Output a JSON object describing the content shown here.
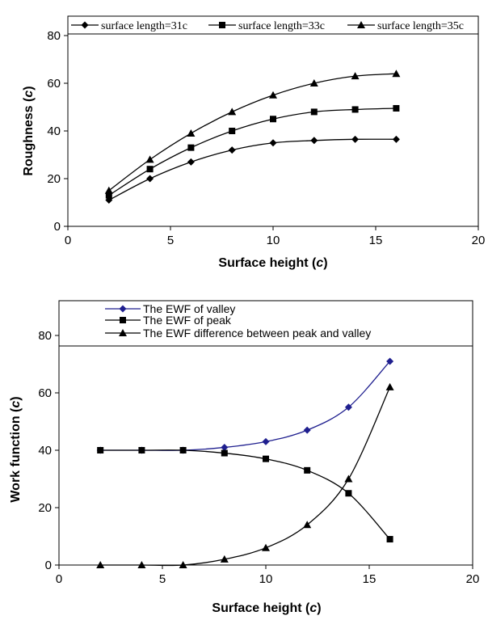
{
  "chart_data": [
    {
      "type": "line",
      "xlabel": "Surface height",
      "xlabel_unit": "c",
      "ylabel": "Roughness",
      "ylabel_unit": "c",
      "xlim": [
        0,
        20
      ],
      "ylim": [
        0,
        80
      ],
      "xticks": [
        "0",
        "5",
        "10",
        "15",
        "20"
      ],
      "yticks": [
        "0",
        "20",
        "40",
        "60",
        "80"
      ],
      "grid": false,
      "legend_position": "top",
      "x": [
        2,
        4,
        6,
        8,
        10,
        12,
        14,
        16
      ],
      "series": [
        {
          "name": "surface length=31c",
          "marker": "diamond",
          "color": "#000000",
          "values": [
            11,
            20,
            27,
            32,
            35,
            36,
            36.5,
            36.5
          ]
        },
        {
          "name": "surface length=33c",
          "marker": "square",
          "color": "#000000",
          "values": [
            13,
            24,
            33,
            40,
            45,
            48,
            49,
            49.5
          ]
        },
        {
          "name": "surface length=35c",
          "marker": "triangle",
          "color": "#000000",
          "values": [
            15,
            28,
            39,
            48,
            55,
            60,
            63,
            64
          ]
        }
      ]
    },
    {
      "type": "line",
      "xlabel": "Surface height",
      "xlabel_unit": "c",
      "ylabel": "Work function",
      "ylabel_unit": "c",
      "xlim": [
        0,
        20
      ],
      "ylim": [
        0,
        80
      ],
      "xticks": [
        "0",
        "5",
        "10",
        "15",
        "20"
      ],
      "yticks": [
        "0",
        "20",
        "40",
        "60",
        "80"
      ],
      "grid": false,
      "legend_position": "top",
      "x": [
        2,
        4,
        6,
        8,
        10,
        12,
        14,
        16
      ],
      "series": [
        {
          "name": "The EWF of valley",
          "marker": "diamond",
          "color": "#1f1f8f",
          "values": [
            40,
            40,
            40,
            41,
            43,
            47,
            55,
            71
          ]
        },
        {
          "name": "The EWF of peak",
          "marker": "square",
          "color": "#000000",
          "values": [
            40,
            40,
            40,
            39,
            37,
            33,
            25,
            9
          ]
        },
        {
          "name": "The EWF difference between peak and valley",
          "marker": "triangle",
          "color": "#000000",
          "values": [
            0,
            0,
            0,
            2,
            6,
            14,
            30,
            62
          ]
        }
      ]
    }
  ]
}
